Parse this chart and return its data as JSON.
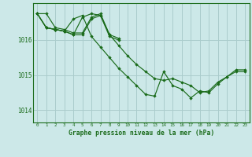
{
  "background_color": "#cce8e8",
  "grid_color": "#aacccc",
  "line_color": "#1a6b1a",
  "marker_color": "#1a6b1a",
  "xlabel": "Graphe pression niveau de la mer (hPa)",
  "ylim": [
    1013.65,
    1017.05
  ],
  "xlim": [
    -0.5,
    23.5
  ],
  "yticks": [
    1014,
    1015,
    1016
  ],
  "xticks": [
    0,
    1,
    2,
    3,
    4,
    5,
    6,
    7,
    8,
    9,
    10,
    11,
    12,
    13,
    14,
    15,
    16,
    17,
    18,
    19,
    20,
    21,
    22,
    23
  ],
  "series": [
    {
      "x": [
        0,
        1,
        2,
        3,
        4,
        5,
        6,
        7,
        8,
        9,
        10,
        11,
        12,
        13,
        14,
        15,
        16,
        17,
        18,
        19,
        20,
        21,
        22,
        23
      ],
      "y": [
        1016.75,
        1016.75,
        1016.35,
        1016.3,
        1016.2,
        1016.2,
        1016.65,
        1016.75,
        1016.15,
        1015.85,
        1015.55,
        1015.3,
        1015.1,
        1014.9,
        1014.85,
        1014.9,
        1014.8,
        1014.7,
        1014.5,
        1014.55,
        1014.8,
        1014.95,
        1015.15,
        1015.15
      ]
    },
    {
      "x": [
        0,
        1,
        2,
        3,
        4,
        5,
        6,
        7,
        8,
        9
      ],
      "y": [
        1016.75,
        1016.35,
        1016.3,
        1016.25,
        1016.15,
        1016.65,
        1016.75,
        1016.7,
        1016.15,
        1016.05
      ]
    },
    {
      "x": [
        0,
        1,
        2,
        3,
        4,
        5,
        6,
        7,
        8,
        9
      ],
      "y": [
        1016.75,
        1016.35,
        1016.3,
        1016.25,
        1016.15,
        1016.15,
        1016.6,
        1016.7,
        1016.1,
        1016.0
      ]
    },
    {
      "x": [
        0,
        1,
        2,
        3,
        4,
        5,
        6,
        7,
        8,
        9,
        10,
        11,
        12,
        13,
        14,
        15,
        16,
        17,
        18,
        19,
        20,
        21,
        22,
        23
      ],
      "y": [
        1016.75,
        1016.35,
        1016.3,
        1016.25,
        1016.6,
        1016.7,
        1016.1,
        1015.8,
        1015.5,
        1015.2,
        1014.95,
        1014.7,
        1014.45,
        1014.4,
        1015.1,
        1014.7,
        1014.6,
        1014.35,
        1014.55,
        1014.5,
        1014.75,
        1014.95,
        1015.1,
        1015.1
      ]
    }
  ]
}
